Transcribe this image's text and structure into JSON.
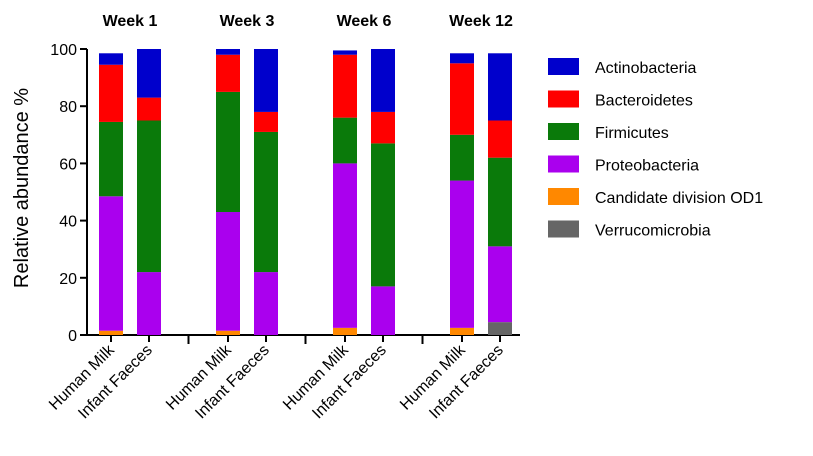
{
  "chart_data": {
    "type": "bar",
    "stacked": true,
    "ylabel": "Relative abundance %",
    "ylim": [
      0,
      100
    ],
    "yticks": [
      0,
      20,
      40,
      60,
      80,
      100
    ],
    "groups": [
      {
        "label": "Week 1",
        "bars": [
          {
            "label": "Human Milk",
            "values": {
              "Verrucomicrobia": 0,
              "Candidate division OD1": 1.5,
              "Proteobacteria": 47,
              "Firmicutes": 26,
              "Bacteroidetes": 20,
              "Actinobacteria": 4
            }
          },
          {
            "label": "Infant Faeces",
            "values": {
              "Verrucomicrobia": 0,
              "Candidate division OD1": 0,
              "Proteobacteria": 22,
              "Firmicutes": 53,
              "Bacteroidetes": 8,
              "Actinobacteria": 17
            }
          }
        ]
      },
      {
        "label": "Week 3",
        "bars": [
          {
            "label": "Human Milk",
            "values": {
              "Verrucomicrobia": 0,
              "Candidate division OD1": 1.5,
              "Proteobacteria": 41.5,
              "Firmicutes": 42,
              "Bacteroidetes": 13,
              "Actinobacteria": 2
            }
          },
          {
            "label": "Infant Faeces",
            "values": {
              "Verrucomicrobia": 0,
              "Candidate division OD1": 0,
              "Proteobacteria": 22,
              "Firmicutes": 49,
              "Bacteroidetes": 7,
              "Actinobacteria": 22
            }
          }
        ]
      },
      {
        "label": "Week 6",
        "bars": [
          {
            "label": "Human Milk",
            "values": {
              "Verrucomicrobia": 0,
              "Candidate division OD1": 2.5,
              "Proteobacteria": 57.5,
              "Firmicutes": 16,
              "Bacteroidetes": 22,
              "Actinobacteria": 1.5
            }
          },
          {
            "label": "Infant Faeces",
            "values": {
              "Verrucomicrobia": 0,
              "Candidate division OD1": 0,
              "Proteobacteria": 17,
              "Firmicutes": 50,
              "Bacteroidetes": 11,
              "Actinobacteria": 22
            }
          }
        ]
      },
      {
        "label": "Week 12",
        "bars": [
          {
            "label": "Human Milk",
            "values": {
              "Verrucomicrobia": 0,
              "Candidate division OD1": 2.5,
              "Proteobacteria": 51.5,
              "Firmicutes": 16,
              "Bacteroidetes": 25,
              "Actinobacteria": 3.5
            }
          },
          {
            "label": "Infant Faeces",
            "values": {
              "Verrucomicrobia": 4.5,
              "Candidate division OD1": 0,
              "Proteobacteria": 26.5,
              "Firmicutes": 31,
              "Bacteroidetes": 13,
              "Actinobacteria": 23.5
            }
          }
        ]
      }
    ],
    "series": [
      {
        "name": "Actinobacteria",
        "color": "#0000cc"
      },
      {
        "name": "Bacteroidetes",
        "color": "#ff0000"
      },
      {
        "name": "Firmicutes",
        "color": "#0a7a0a"
      },
      {
        "name": "Proteobacteria",
        "color": "#aa00ee"
      },
      {
        "name": "Candidate division OD1",
        "color": "#ff8800"
      },
      {
        "name": "Verrucomicrobia",
        "color": "#666666"
      }
    ],
    "stack_order": [
      "Verrucomicrobia",
      "Candidate division OD1",
      "Proteobacteria",
      "Firmicutes",
      "Bacteroidetes",
      "Actinobacteria"
    ],
    "legend_position": "right"
  }
}
